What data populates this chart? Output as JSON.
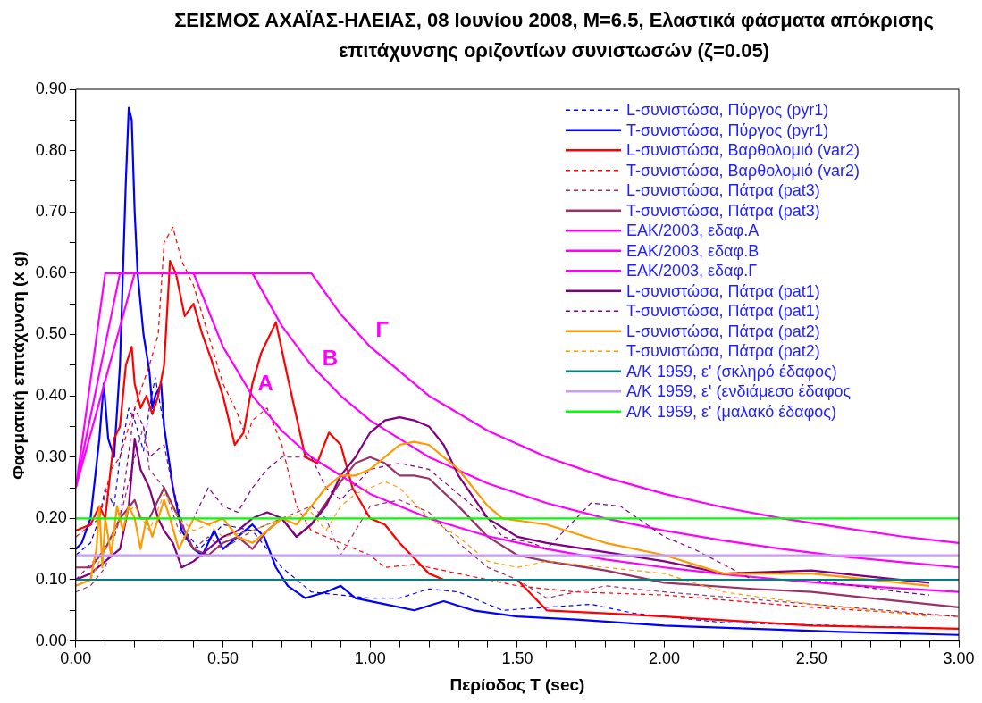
{
  "chart_data": {
    "type": "line",
    "title": "ΣΕΙΣΜΟΣ ΑΧΑΪΑΣ-ΗΛΕΙΑΣ, 08 Ιουνίου 2008, M=6.5, Ελαστικά φάσματα απόκρισης επιτάχυνσης οριζοντίων συνιστωσών (ζ=0.05)",
    "xlabel": "Περίοδος T (sec)",
    "ylabel": "Φασματική επιτάχυνση (x g)",
    "xlim": [
      0,
      3
    ],
    "ylim": [
      0,
      0.9
    ],
    "xticks": [
      {
        "value": 0,
        "label": "0.00"
      },
      {
        "value": 0.1,
        "label": null
      },
      {
        "value": 0.2,
        "label": null
      },
      {
        "value": 0.3,
        "label": null
      },
      {
        "value": 0.4,
        "label": null
      },
      {
        "value": 0.5,
        "label": "0.50"
      },
      {
        "value": 0.6,
        "label": null
      },
      {
        "value": 0.7,
        "label": null
      },
      {
        "value": 0.8,
        "label": null
      },
      {
        "value": 0.9,
        "label": null
      },
      {
        "value": 1,
        "label": "1.00"
      },
      {
        "value": 1.1,
        "label": null
      },
      {
        "value": 1.2,
        "label": null
      },
      {
        "value": 1.3,
        "label": null
      },
      {
        "value": 1.4,
        "label": null
      },
      {
        "value": 1.5,
        "label": "1.50"
      },
      {
        "value": 1.6,
        "label": null
      },
      {
        "value": 1.7,
        "label": null
      },
      {
        "value": 1.8,
        "label": null
      },
      {
        "value": 1.9,
        "label": null
      },
      {
        "value": 2,
        "label": "2.00"
      },
      {
        "value": 2.1,
        "label": null
      },
      {
        "value": 2.2,
        "label": null
      },
      {
        "value": 2.3,
        "label": null
      },
      {
        "value": 2.4,
        "label": null
      },
      {
        "value": 2.5,
        "label": "2.50"
      },
      {
        "value": 2.6,
        "label": null
      },
      {
        "value": 2.7,
        "label": null
      },
      {
        "value": 2.8,
        "label": null
      },
      {
        "value": 2.9,
        "label": null
      },
      {
        "value": 3,
        "label": "3.00"
      }
    ],
    "yticks": [
      {
        "value": 0,
        "label": "0.00"
      },
      {
        "value": 0.05,
        "label": null
      },
      {
        "value": 0.1,
        "label": "0.10"
      },
      {
        "value": 0.15,
        "label": null
      },
      {
        "value": 0.2,
        "label": "0.20"
      },
      {
        "value": 0.25,
        "label": null
      },
      {
        "value": 0.3,
        "label": "0.30"
      },
      {
        "value": 0.35,
        "label": null
      },
      {
        "value": 0.4,
        "label": "0.40"
      },
      {
        "value": 0.45,
        "label": null
      },
      {
        "value": 0.5,
        "label": "0.50"
      },
      {
        "value": 0.55,
        "label": null
      },
      {
        "value": 0.6,
        "label": "0.60"
      },
      {
        "value": 0.65,
        "label": null
      },
      {
        "value": 0.7,
        "label": "0.70"
      },
      {
        "value": 0.75,
        "label": null
      },
      {
        "value": 0.8,
        "label": "0.80"
      },
      {
        "value": 0.85,
        "label": null
      },
      {
        "value": 0.9,
        "label": "0.90"
      }
    ],
    "grid": false,
    "legend": "top right",
    "marker": "none",
    "annotations": [
      "A",
      "B",
      "Γ"
    ],
    "series": [
      {
        "name": "L-συνιστώσα, Πύργος (pyr1)",
        "color": "#0000ff",
        "line_style": "dashed",
        "x": [
          0,
          0.05,
          0.08,
          0.1,
          0.13,
          0.15,
          0.18,
          0.2,
          0.23,
          0.25,
          0.27,
          0.3,
          0.33,
          0.37,
          0.42,
          0.5,
          0.6,
          0.65,
          0.7,
          0.8,
          0.9,
          1,
          1.1,
          1.2,
          1.3,
          1.45,
          1.6,
          1.75,
          1.9,
          2.2,
          2.6,
          3
        ],
        "values": [
          0.14,
          0.16,
          0.2,
          0.25,
          0.22,
          0.3,
          0.38,
          0.36,
          0.31,
          0.38,
          0.43,
          0.35,
          0.25,
          0.18,
          0.15,
          0.19,
          0.18,
          0.15,
          0.12,
          0.08,
          0.075,
          0.07,
          0.07,
          0.085,
          0.08,
          0.05,
          0.055,
          0.06,
          0.045,
          0.03,
          0.025,
          0.02
        ]
      },
      {
        "name": "T-συνιστώσα, Πύργος (pyr1)",
        "color": "#0000ff",
        "line_style": "solid",
        "x": [
          0,
          0.02,
          0.05,
          0.08,
          0.095,
          0.11,
          0.13,
          0.15,
          0.17,
          0.18,
          0.19,
          0.2,
          0.21,
          0.23,
          0.25,
          0.26,
          0.27,
          0.29,
          0.3,
          0.33,
          0.36,
          0.4,
          0.43,
          0.47,
          0.5,
          0.55,
          0.6,
          0.64,
          0.68,
          0.72,
          0.78,
          0.85,
          0.9,
          0.95,
          1.05,
          1.15,
          1.25,
          1.35,
          1.5,
          1.7,
          2,
          2.3,
          2.6,
          3
        ],
        "values": [
          0.15,
          0.16,
          0.2,
          0.33,
          0.42,
          0.33,
          0.3,
          0.45,
          0.75,
          0.87,
          0.85,
          0.7,
          0.6,
          0.5,
          0.44,
          0.38,
          0.4,
          0.42,
          0.35,
          0.25,
          0.18,
          0.15,
          0.14,
          0.18,
          0.15,
          0.17,
          0.19,
          0.17,
          0.12,
          0.09,
          0.07,
          0.08,
          0.09,
          0.07,
          0.06,
          0.05,
          0.065,
          0.05,
          0.04,
          0.035,
          0.025,
          0.02,
          0.015,
          0.01
        ]
      },
      {
        "name": "L-συνιστώσα, Βαρθολομιό (var2)",
        "color": "#ff0000",
        "line_style": "solid",
        "x": [
          0,
          0.05,
          0.08,
          0.1,
          0.13,
          0.15,
          0.17,
          0.19,
          0.2,
          0.22,
          0.24,
          0.26,
          0.28,
          0.3,
          0.32,
          0.34,
          0.37,
          0.4,
          0.43,
          0.46,
          0.5,
          0.54,
          0.57,
          0.6,
          0.63,
          0.68,
          0.72,
          0.78,
          0.82,
          0.86,
          0.9,
          0.94,
          1,
          1.05,
          1.1,
          1.2,
          1.25,
          1.35,
          1.5,
          1.6,
          1.8,
          2,
          2.5,
          3
        ],
        "values": [
          0.18,
          0.19,
          0.22,
          0.2,
          0.33,
          0.35,
          0.45,
          0.48,
          0.42,
          0.38,
          0.4,
          0.37,
          0.4,
          0.45,
          0.62,
          0.6,
          0.53,
          0.55,
          0.5,
          0.46,
          0.4,
          0.32,
          0.34,
          0.42,
          0.47,
          0.52,
          0.43,
          0.3,
          0.29,
          0.34,
          0.32,
          0.25,
          0.2,
          0.19,
          0.16,
          0.11,
          0.1,
          0.1,
          0.1,
          0.05,
          0.045,
          0.04,
          0.025,
          0.02
        ]
      },
      {
        "name": "T-συνιστώσα, Βαρθολομιό (var2)",
        "color": "#ff0000",
        "line_style": "dashed",
        "x": [
          0,
          0.08,
          0.12,
          0.15,
          0.18,
          0.2,
          0.25,
          0.28,
          0.3,
          0.33,
          0.36,
          0.4,
          0.45,
          0.5,
          0.55,
          0.58,
          0.6,
          0.65,
          0.7,
          0.75,
          0.8,
          0.9,
          1,
          1.05,
          1.15,
          1.3,
          1.5,
          1.7,
          2,
          2.5,
          3
        ],
        "values": [
          0.17,
          0.2,
          0.28,
          0.3,
          0.35,
          0.38,
          0.45,
          0.5,
          0.65,
          0.675,
          0.62,
          0.58,
          0.5,
          0.42,
          0.37,
          0.33,
          0.36,
          0.38,
          0.32,
          0.22,
          0.18,
          0.16,
          0.14,
          0.12,
          0.125,
          0.11,
          0.09,
          0.08,
          0.075,
          0.055,
          0.04
        ]
      },
      {
        "name": "L-συνιστώσα, Πάτρα (pat3)",
        "color": "#993366",
        "line_style": "dashed",
        "x": [
          0,
          0.05,
          0.1,
          0.15,
          0.2,
          0.23,
          0.25,
          0.3,
          0.35,
          0.4,
          0.45,
          0.5,
          0.6,
          0.7,
          0.8,
          0.85,
          0.9,
          0.95,
          1,
          1.1,
          1.2,
          1.3,
          1.4,
          1.5,
          1.6,
          1.8,
          2,
          2.5,
          3
        ],
        "values": [
          0.08,
          0.09,
          0.12,
          0.2,
          0.3,
          0.35,
          0.28,
          0.25,
          0.18,
          0.15,
          0.17,
          0.15,
          0.18,
          0.2,
          0.22,
          0.2,
          0.14,
          0.18,
          0.22,
          0.23,
          0.21,
          0.16,
          0.12,
          0.1,
          0.07,
          0.09,
          0.08,
          0.06,
          0.04
        ]
      },
      {
        "name": "T-συνιστώσα, Πάτρα (pat3)",
        "color": "#993366",
        "line_style": "solid",
        "x": [
          0,
          0.05,
          0.1,
          0.15,
          0.2,
          0.22,
          0.25,
          0.3,
          0.33,
          0.36,
          0.4,
          0.45,
          0.5,
          0.55,
          0.6,
          0.65,
          0.7,
          0.75,
          0.8,
          0.9,
          0.95,
          1,
          1.05,
          1.1,
          1.15,
          1.2,
          1.3,
          1.4,
          1.5,
          1.6,
          1.8,
          2,
          2.3,
          2.5,
          2.7,
          3
        ],
        "values": [
          0.12,
          0.12,
          0.15,
          0.2,
          0.23,
          0.2,
          0.2,
          0.25,
          0.22,
          0.19,
          0.15,
          0.14,
          0.16,
          0.17,
          0.15,
          0.18,
          0.2,
          0.17,
          0.19,
          0.26,
          0.29,
          0.3,
          0.29,
          0.27,
          0.27,
          0.265,
          0.22,
          0.17,
          0.14,
          0.13,
          0.115,
          0.095,
          0.085,
          0.08,
          0.07,
          0.055
        ]
      },
      {
        "name": "EAK/2003, εδαφ.A",
        "color": "#ff00ff",
        "line_style": "solid",
        "x": [
          0,
          0.1,
          0.4,
          0.5,
          0.6,
          0.7,
          0.8,
          1,
          1.2,
          1.4,
          1.6,
          1.8,
          2,
          2.2,
          2.4,
          2.6,
          2.8,
          3
        ],
        "values": [
          0.25,
          0.6,
          0.6,
          0.48,
          0.4,
          0.343,
          0.3,
          0.24,
          0.2,
          0.171,
          0.15,
          0.133,
          0.12,
          0.109,
          0.1,
          0.092,
          0.086,
          0.08
        ]
      },
      {
        "name": "EAK/2003, εδαφ.B",
        "color": "#ff00ff",
        "line_style": "solid",
        "x": [
          0,
          0.15,
          0.6,
          0.7,
          0.8,
          0.9,
          1,
          1.2,
          1.4,
          1.6,
          1.8,
          2,
          2.2,
          2.4,
          2.6,
          2.8,
          3
        ],
        "values": [
          0.25,
          0.6,
          0.6,
          0.514,
          0.45,
          0.4,
          0.36,
          0.3,
          0.257,
          0.225,
          0.2,
          0.18,
          0.164,
          0.15,
          0.138,
          0.129,
          0.12
        ]
      },
      {
        "name": "EAK/2003, εδαφ.Γ",
        "color": "#ff00ff",
        "line_style": "solid",
        "x": [
          0,
          0.2,
          0.8,
          0.9,
          1,
          1.2,
          1.4,
          1.6,
          1.8,
          2,
          2.2,
          2.4,
          2.6,
          2.8,
          3
        ],
        "values": [
          0.25,
          0.6,
          0.6,
          0.533,
          0.48,
          0.4,
          0.343,
          0.3,
          0.267,
          0.24,
          0.218,
          0.2,
          0.185,
          0.171,
          0.16
        ]
      },
      {
        "name": "L-συνιστώσα, Πάτρα (pat1)",
        "color": "#800080",
        "line_style": "solid",
        "x": [
          0,
          0.05,
          0.1,
          0.15,
          0.18,
          0.2,
          0.22,
          0.25,
          0.28,
          0.3,
          0.33,
          0.36,
          0.4,
          0.45,
          0.5,
          0.55,
          0.6,
          0.65,
          0.7,
          0.75,
          0.8,
          0.85,
          0.9,
          0.95,
          1,
          1.05,
          1.1,
          1.15,
          1.2,
          1.25,
          1.3,
          1.4,
          1.5,
          1.6,
          1.8,
          2,
          2.2,
          2.5,
          2.7,
          2.9
        ],
        "values": [
          0.1,
          0.11,
          0.13,
          0.15,
          0.22,
          0.33,
          0.28,
          0.25,
          0.2,
          0.18,
          0.16,
          0.12,
          0.13,
          0.15,
          0.17,
          0.18,
          0.2,
          0.21,
          0.2,
          0.17,
          0.19,
          0.22,
          0.27,
          0.3,
          0.34,
          0.36,
          0.365,
          0.36,
          0.35,
          0.32,
          0.27,
          0.2,
          0.17,
          0.16,
          0.145,
          0.13,
          0.11,
          0.115,
          0.105,
          0.095
        ]
      },
      {
        "name": "T-συνιστώσα, Πάτρα (pat1)",
        "color": "#800080",
        "line_style": "dashed",
        "x": [
          0,
          0.1,
          0.15,
          0.2,
          0.23,
          0.25,
          0.3,
          0.35,
          0.4,
          0.45,
          0.5,
          0.55,
          0.6,
          0.65,
          0.7,
          0.8,
          0.85,
          0.9,
          1,
          1.1,
          1.2,
          1.3,
          1.4,
          1.45,
          1.55,
          1.6,
          1.7,
          1.75,
          1.85,
          2,
          2.1,
          2.3,
          2.5,
          2.8,
          2.9
        ],
        "values": [
          0.1,
          0.15,
          0.2,
          0.38,
          0.35,
          0.3,
          0.32,
          0.2,
          0.2,
          0.25,
          0.22,
          0.21,
          0.25,
          0.28,
          0.3,
          0.3,
          0.25,
          0.23,
          0.28,
          0.29,
          0.28,
          0.24,
          0.2,
          0.17,
          0.16,
          0.15,
          0.2,
          0.225,
          0.22,
          0.17,
          0.15,
          0.1,
          0.1,
          0.08,
          0.075
        ]
      },
      {
        "name": "L-συνιστώσα, Πάτρα (pat2)",
        "color": "#ff9900",
        "line_style": "solid",
        "x": [
          0,
          0.05,
          0.07,
          0.08,
          0.09,
          0.1,
          0.12,
          0.14,
          0.16,
          0.18,
          0.2,
          0.22,
          0.24,
          0.26,
          0.3,
          0.32,
          0.35,
          0.4,
          0.45,
          0.5,
          0.55,
          0.6,
          0.65,
          0.7,
          0.75,
          0.8,
          0.85,
          0.9,
          0.95,
          1,
          1.05,
          1.1,
          1.15,
          1.2,
          1.3,
          1.4,
          1.45,
          1.6,
          1.8,
          2,
          2.2,
          2.5,
          2.8,
          2.9
        ],
        "values": [
          0.09,
          0.1,
          0.15,
          0.22,
          0.12,
          0.2,
          0.14,
          0.22,
          0.18,
          0.22,
          0.2,
          0.15,
          0.2,
          0.17,
          0.23,
          0.2,
          0.15,
          0.2,
          0.19,
          0.2,
          0.17,
          0.16,
          0.18,
          0.2,
          0.19,
          0.22,
          0.25,
          0.27,
          0.27,
          0.28,
          0.3,
          0.32,
          0.325,
          0.32,
          0.28,
          0.22,
          0.2,
          0.19,
          0.16,
          0.14,
          0.11,
          0.11,
          0.095,
          0.09
        ]
      },
      {
        "name": "T-συνιστώσα, Πάτρα (pat2)",
        "color": "#ff9900",
        "line_style": "dashed",
        "x": [
          0,
          0.05,
          0.1,
          0.15,
          0.2,
          0.25,
          0.3,
          0.35,
          0.4,
          0.45,
          0.5,
          0.6,
          0.7,
          0.8,
          0.85,
          0.9,
          0.95,
          1,
          1.05,
          1.1,
          1.2,
          1.3,
          1.4,
          1.5,
          1.6,
          1.8,
          2,
          2.2,
          2.5,
          2.8,
          2.9
        ],
        "values": [
          0.09,
          0.1,
          0.15,
          0.2,
          0.22,
          0.18,
          0.24,
          0.2,
          0.18,
          0.19,
          0.17,
          0.18,
          0.2,
          0.21,
          0.18,
          0.22,
          0.24,
          0.25,
          0.26,
          0.25,
          0.2,
          0.17,
          0.13,
          0.12,
          0.13,
          0.12,
          0.11,
          0.08,
          0.06,
          0.045,
          0.04
        ]
      },
      {
        "name": "A/K 1959, ε' (σκληρό έδαφος)",
        "color": "#008080",
        "line_style": "solid",
        "x": [
          0,
          3
        ],
        "values": [
          0.1,
          0.1
        ]
      },
      {
        "name": "A/K 1959, ε' (ενδιάμεσο έδαφος",
        "color": "#cc99ff",
        "line_style": "solid",
        "x": [
          0,
          3
        ],
        "values": [
          0.14,
          0.14
        ]
      },
      {
        "name": "A/K 1959, ε' (μαλακό έδαφος)",
        "color": "#00ff00",
        "line_style": "solid",
        "x": [
          0,
          3
        ],
        "values": [
          0.2,
          0.2
        ]
      }
    ]
  }
}
